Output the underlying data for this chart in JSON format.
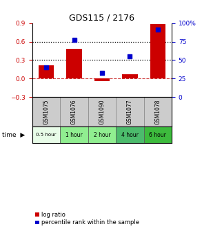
{
  "title": "GDS115 / 2176",
  "categories": [
    "GSM1075",
    "GSM1076",
    "GSM1090",
    "GSM1077",
    "GSM1078"
  ],
  "time_labels": [
    "0.5 hour",
    "1 hour",
    "2 hour",
    "4 hour",
    "6 hour"
  ],
  "time_colors": [
    "#e8fce8",
    "#90ee90",
    "#90ee90",
    "#4cbb6c",
    "#3dbb3d"
  ],
  "log_ratios": [
    0.22,
    0.48,
    -0.04,
    0.07,
    0.88
  ],
  "percentile_ranks": [
    40,
    77,
    33,
    55,
    91
  ],
  "bar_color": "#cc0000",
  "dot_color": "#0000cc",
  "ylim_left": [
    -0.3,
    0.9
  ],
  "ylim_right": [
    0,
    100
  ],
  "yticks_left": [
    -0.3,
    0.0,
    0.3,
    0.6,
    0.9
  ],
  "yticks_right": [
    0,
    25,
    50,
    75,
    100
  ],
  "hline_dashed_red": 0.0,
  "hline_dotted_1": 0.3,
  "hline_dotted_2": 0.6,
  "bg_color": "#ffffff",
  "plot_bg": "#ffffff",
  "legend_log_ratio": "log ratio",
  "legend_percentile": "percentile rank within the sample"
}
